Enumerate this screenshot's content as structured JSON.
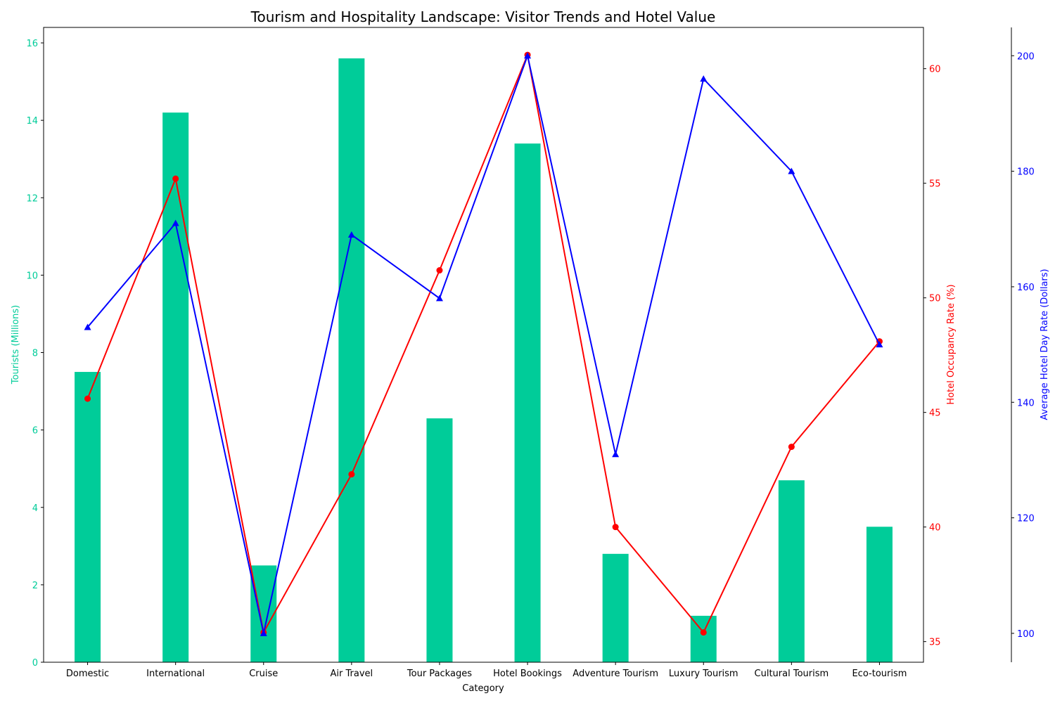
{
  "chart_data": {
    "type": "bar",
    "title": "Tourism and Hospitality Landscape: Visitor Trends and Hotel Value",
    "xlabel": "Category",
    "categories": [
      "Domestic",
      "International",
      "Cruise",
      "Air Travel",
      "Tour Packages",
      "Hotel Bookings",
      "Adventure Tourism",
      "Luxury Tourism",
      "Cultural Tourism",
      "Eco-tourism"
    ],
    "series": [
      {
        "name": "Tourists (Millions)",
        "type": "bar",
        "axis": "left",
        "color": "#00cc99",
        "values": [
          7.5,
          14.2,
          2.5,
          15.6,
          6.3,
          13.4,
          2.8,
          1.2,
          4.7,
          3.5
        ]
      },
      {
        "name": "Hotel Occupancy Rate (%)",
        "type": "line",
        "marker": "circle",
        "axis": "right",
        "color": "#ff0000",
        "values": [
          45.6,
          55.2,
          35.4,
          42.3,
          51.2,
          60.6,
          40.0,
          35.4,
          43.5,
          48.1
        ]
      },
      {
        "name": "Average Hotel Day Rate (Dollars)",
        "type": "line",
        "marker": "triangle",
        "axis": "far-right",
        "color": "#0000ff",
        "values": [
          153,
          171,
          100,
          169,
          158,
          200,
          131,
          196,
          180,
          150
        ]
      }
    ],
    "axes": {
      "left": {
        "label": "Tourists (Millions)",
        "color": "#00cc99",
        "ylim": [
          0,
          16.4
        ],
        "ticks": [
          0,
          2,
          4,
          6,
          8,
          10,
          12,
          14,
          16
        ]
      },
      "right": {
        "label": "Hotel Occupancy Rate (%)",
        "color": "#ff0000",
        "ylim": [
          34.1,
          61.8
        ],
        "ticks": [
          35,
          40,
          45,
          50,
          55,
          60
        ]
      },
      "far_right": {
        "label": "Average Hotel Day Rate (Dollars)",
        "color": "#0000ff",
        "ylim": [
          95,
          204.9
        ],
        "ticks": [
          100,
          120,
          140,
          160,
          180,
          200
        ]
      }
    },
    "grid": false,
    "legend": "none"
  }
}
